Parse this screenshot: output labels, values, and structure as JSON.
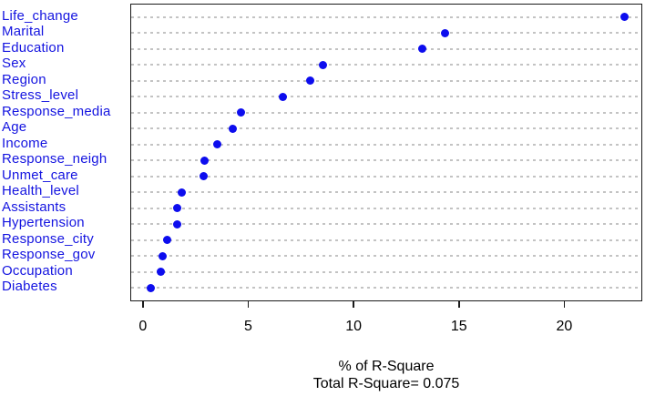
{
  "chart_data": {
    "type": "scatter",
    "variant": "dot-chart",
    "title": "",
    "xlabel": "% of R-Square",
    "subtitle": "Total R-Square= 0.075",
    "categories": [
      "Life_change",
      "Marital",
      "Education",
      "Sex",
      "Region",
      "Stress_level",
      "Response_media",
      "Age",
      "Income",
      "Response_neigh",
      "Unmet_care",
      "Health_level",
      "Assistants",
      "Hypertension",
      "Response_city",
      "Response_gov",
      "Occupation",
      "Diabetes"
    ],
    "values": [
      22.8,
      14.3,
      13.2,
      8.5,
      7.9,
      6.6,
      4.6,
      4.2,
      3.5,
      2.9,
      2.85,
      1.8,
      1.6,
      1.6,
      1.1,
      0.9,
      0.8,
      0.35
    ],
    "xticks": [
      0,
      5,
      10,
      15,
      20
    ],
    "xtick_labels": [
      "0",
      "5",
      "10",
      "15",
      "20"
    ],
    "xlim": [
      -0.6,
      23.7
    ],
    "grid": "dotted horizontal line per category",
    "legend": "none",
    "colors": {
      "dot": "#0d0dee",
      "category_label": "#1414e0",
      "grid_line": "#c3c3c3",
      "axis": "#1a1a1a",
      "background": "#ffffff",
      "caption_text": "#000000"
    }
  }
}
